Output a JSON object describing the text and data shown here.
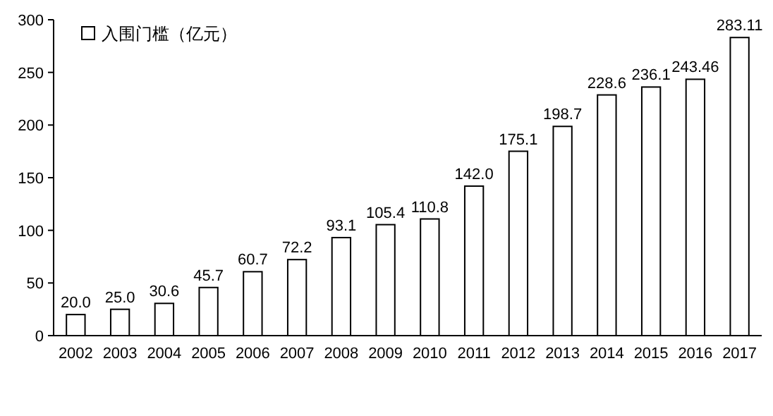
{
  "chart_data": {
    "type": "bar",
    "categories": [
      "2002",
      "2003",
      "2004",
      "2005",
      "2006",
      "2007",
      "2008",
      "2009",
      "2010",
      "2011",
      "2012",
      "2013",
      "2014",
      "2015",
      "2016",
      "2017"
    ],
    "series": [
      {
        "name": "入围门槛（亿元）",
        "color": "#ffffff",
        "values": [
          20.0,
          25.0,
          30.6,
          45.7,
          60.7,
          72.2,
          93.1,
          105.4,
          110.8,
          142.0,
          175.1,
          198.7,
          228.6,
          236.1,
          243.46,
          283.11
        ],
        "value_labels": [
          "20.0",
          "25.0",
          "30.6",
          "45.7",
          "60.7",
          "72.2",
          "93.1",
          "105.4",
          "110.8",
          "142.0",
          "175.1",
          "198.7",
          "228.6",
          "236.1",
          "243.46",
          "283.11"
        ]
      }
    ],
    "ylim": [
      0,
      300
    ],
    "yticks": [
      0,
      50,
      100,
      150,
      200,
      250,
      300
    ],
    "legend": "top left"
  }
}
